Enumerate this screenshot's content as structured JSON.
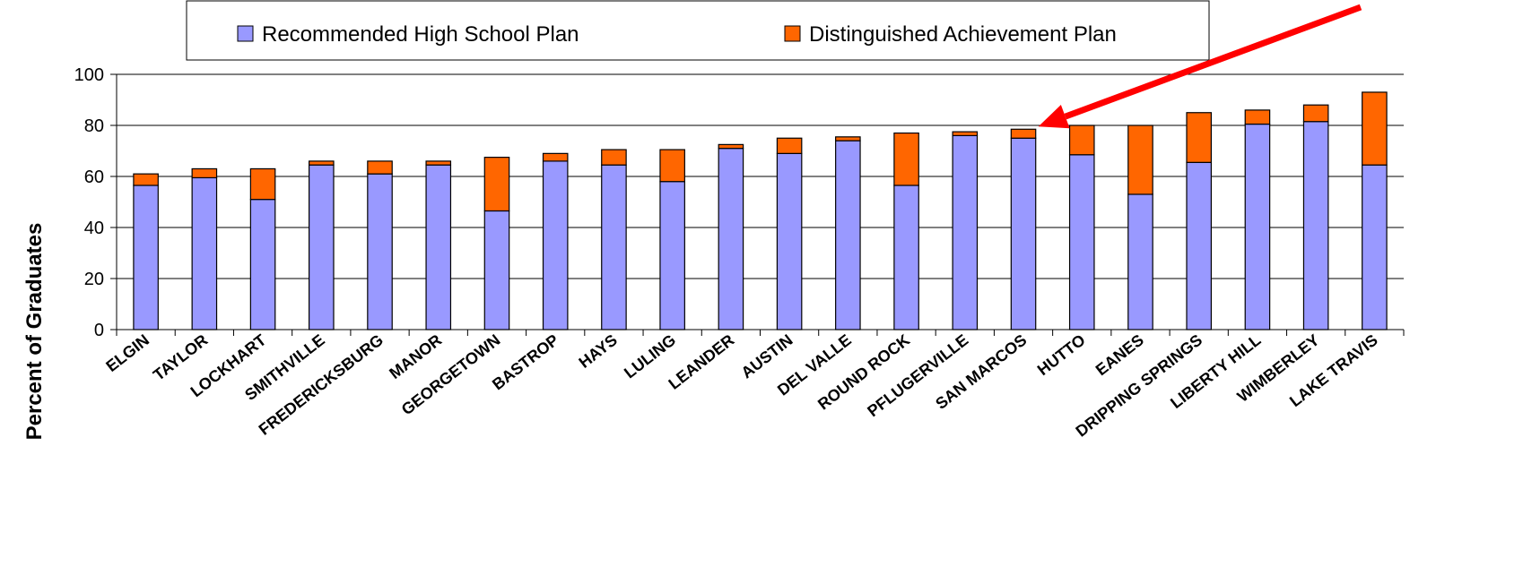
{
  "colors": {
    "recommended": "#9999ff",
    "distinguished": "#ff6600",
    "arrow": "#ff0000",
    "grid": "#000000"
  },
  "chart_data": {
    "type": "bar",
    "stacked": true,
    "ylabel": "Percent of Graduates",
    "ylim": [
      0,
      100
    ],
    "yticks": [
      0,
      20,
      40,
      60,
      80,
      100
    ],
    "grid": true,
    "legend_position": "top",
    "categories": [
      "ELGIN",
      "TAYLOR",
      "LOCKHART",
      "SMITHVILLE",
      "FREDERICKSBURG",
      "MANOR",
      "GEORGETOWN",
      "BASTROP",
      "HAYS",
      "LULING",
      "LEANDER",
      "AUSTIN",
      "DEL VALLE",
      "ROUND ROCK",
      "PFLUGERVILLE",
      "SAN MARCOS",
      "HUTTO",
      "EANES",
      "DRIPPING SPRINGS",
      "LIBERTY HILL",
      "WIMBERLEY",
      "LAKE TRAVIS"
    ],
    "series": [
      {
        "name": "Recommended High School Plan",
        "values": [
          56.5,
          59.5,
          51,
          64.5,
          61,
          64.5,
          46.5,
          66,
          64.5,
          58,
          71,
          69,
          74,
          56.5,
          76,
          75,
          68.5,
          53,
          65.5,
          80.5,
          81.5,
          64.5
        ]
      },
      {
        "name": "Distinguished Achievement Plan",
        "values": [
          4.5,
          3.5,
          12,
          1.5,
          5,
          1.5,
          21,
          3,
          6,
          12.5,
          1.5,
          6,
          1.5,
          20.5,
          1.5,
          3.5,
          11.5,
          27,
          19.5,
          5.5,
          6.5,
          28.5
        ]
      }
    ],
    "annotation": {
      "type": "arrow",
      "target_category": "SAN MARCOS"
    }
  }
}
